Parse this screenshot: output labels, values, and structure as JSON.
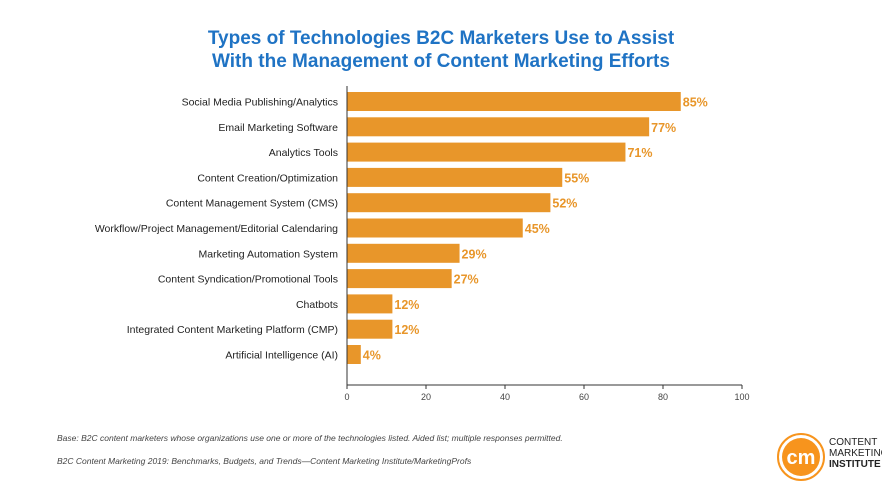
{
  "title_lines": [
    "Types of Technologies B2C Marketers Use to Assist",
    "With the Management of Content Marketing Efforts"
  ],
  "chart_data": {
    "type": "bar",
    "orientation": "horizontal",
    "title": "Types of Technologies B2C Marketers Use to Assist With the Management of Content Marketing Efforts",
    "categories": [
      "Social Media Publishing/Analytics",
      "Email Marketing Software",
      "Analytics Tools",
      "Content Creation/Optimization",
      "Content Management System (CMS)",
      "Workflow/Project Management/Editorial Calendaring",
      "Marketing Automation System",
      "Content Syndication/Promotional Tools",
      "Chatbots",
      "Integrated Content Marketing Platform (CMP)",
      "Artificial Intelligence (AI)"
    ],
    "values": [
      85,
      77,
      71,
      55,
      52,
      45,
      29,
      27,
      12,
      12,
      4
    ],
    "data_labels": [
      "85%",
      "77%",
      "71%",
      "55%",
      "52%",
      "45%",
      "29%",
      "27%",
      "12%",
      "12%",
      "4%"
    ],
    "xlim": [
      0,
      100
    ],
    "xticks": [
      0,
      20,
      40,
      60,
      80,
      100
    ],
    "grid": false,
    "bar_color": "#e8962a",
    "label_color": "#e8962a"
  },
  "footnotes": {
    "base": "Base: B2C content marketers whose organizations use one or more of the technologies listed. Aided list; multiple responses permitted.",
    "source": "B2C Content Marketing 2019: Benchmarks, Budgets, and Trends—Content Marketing Institute/MarketingProfs"
  },
  "logo": {
    "mark": "cm",
    "lines": [
      "CONTENT",
      "MARKETING",
      "INSTITUTE"
    ],
    "color": "#f7941d"
  }
}
